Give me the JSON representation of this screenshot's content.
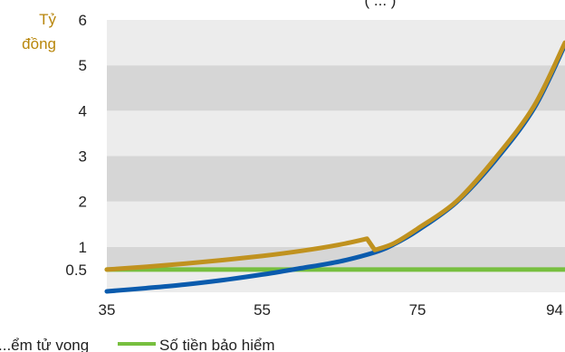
{
  "colors": {
    "band_light": "#ececec",
    "band_dark": "#d6d6d6",
    "gold": "#c0921f",
    "blue": "#0a5bad",
    "green": "#77bf3f",
    "unit_text": "#b8860b"
  },
  "chart_data": {
    "type": "line",
    "title_fragment": "(   ...   )",
    "ylabel_line1": "Tỷ",
    "ylabel_line2": "đồng",
    "xlim": [
      35,
      94
    ],
    "ylim": [
      0,
      6
    ],
    "xticks": [
      35,
      55,
      75,
      94
    ],
    "yticks": [
      {
        "value": 0.5,
        "label": "0.5"
      },
      {
        "value": 1,
        "label": "1"
      },
      {
        "value": 2,
        "label": "2"
      },
      {
        "value": 3,
        "label": "3"
      },
      {
        "value": 4,
        "label": "4"
      },
      {
        "value": 5,
        "label": "5"
      },
      {
        "value": 6,
        "label": "6"
      }
    ],
    "band_bounds": [
      0,
      0.5,
      1,
      2,
      3,
      4,
      5,
      6
    ],
    "legend": [
      {
        "label": "...ểm tử vong",
        "color": "#c0921f"
      },
      {
        "label": "Số tiền bảo hiểm",
        "color": "#77bf3f"
      }
    ],
    "series": [
      {
        "color": "#c0921f",
        "x": [
          35,
          40,
          45,
          50,
          55,
          60,
          65,
          68.5,
          69.5,
          72,
          75,
          80,
          85,
          90,
          94
        ],
        "y": [
          0.5,
          0.56,
          0.63,
          0.71,
          0.8,
          0.91,
          1.05,
          1.18,
          0.93,
          1.08,
          1.4,
          2.0,
          2.95,
          4.1,
          5.5
        ]
      },
      {
        "color": "#0a5bad",
        "x": [
          35,
          40,
          45,
          50,
          55,
          60,
          65,
          69.5,
          72,
          75,
          80,
          85,
          90,
          94
        ],
        "y": [
          0.02,
          0.09,
          0.17,
          0.27,
          0.39,
          0.53,
          0.68,
          0.88,
          1.06,
          1.36,
          1.98,
          2.9,
          4.05,
          5.45
        ]
      },
      {
        "color": "#77bf3f",
        "x": [
          35,
          94
        ],
        "y": [
          0.5,
          0.5
        ]
      }
    ]
  }
}
